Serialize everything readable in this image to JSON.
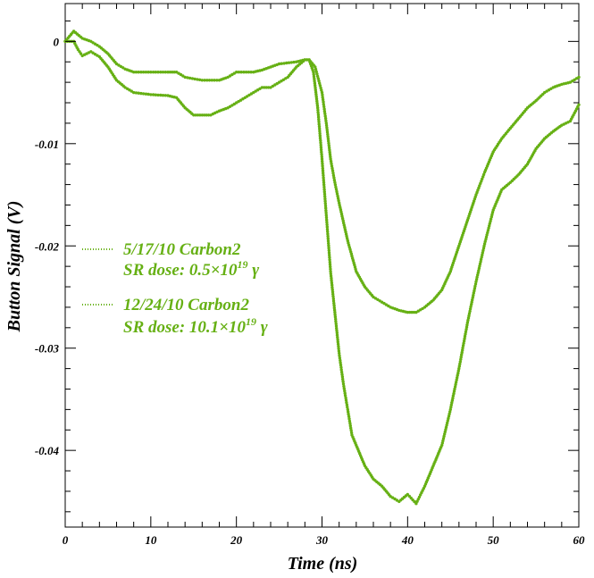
{
  "chart_data": {
    "type": "scatter",
    "xlabel": "Time (ns)",
    "ylabel": "Button Signal (V)",
    "xlim": [
      0,
      60
    ],
    "ylim": [
      -0.0475,
      0.0037
    ],
    "x_ticks": [
      0,
      10,
      20,
      30,
      40,
      50,
      60
    ],
    "x_tick_labels": [
      "0",
      "10",
      "20",
      "30",
      "40",
      "50",
      "60"
    ],
    "y_ticks": [
      0,
      -0.01,
      -0.02,
      -0.03,
      -0.04
    ],
    "y_tick_labels": [
      "0",
      "-0.01",
      "-0.02",
      "-0.03",
      "-0.04"
    ],
    "grid": false,
    "legend_position": "left-middle",
    "marker_color": "#66b014",
    "series": [
      {
        "label_line1": "5/17/10 Carbon2",
        "label_line2_prefix": "SR dose: 0.5×10",
        "label_line2_sup": "19",
        "label_line2_suffix": " γ",
        "points": [
          [
            0,
            0
          ],
          [
            1,
            0.001
          ],
          [
            2,
            0.0003
          ],
          [
            3,
            0
          ],
          [
            4,
            -0.0005
          ],
          [
            5,
            -0.0012
          ],
          [
            6,
            -0.0022
          ],
          [
            7,
            -0.0027
          ],
          [
            8,
            -0.003
          ],
          [
            10,
            -0.003
          ],
          [
            12,
            -0.003
          ],
          [
            13,
            -0.003
          ],
          [
            14,
            -0.0035
          ],
          [
            16,
            -0.0038
          ],
          [
            18,
            -0.0038
          ],
          [
            19,
            -0.0035
          ],
          [
            20,
            -0.003
          ],
          [
            22,
            -0.003
          ],
          [
            23,
            -0.0028
          ],
          [
            24,
            -0.0025
          ],
          [
            25,
            -0.0022
          ],
          [
            27,
            -0.002
          ],
          [
            28,
            -0.0018
          ],
          [
            28.5,
            -0.0018
          ],
          [
            29.2,
            -0.0025
          ],
          [
            30,
            -0.005
          ],
          [
            30.5,
            -0.008
          ],
          [
            31,
            -0.0115
          ],
          [
            31.5,
            -0.0138
          ],
          [
            32,
            -0.0158
          ],
          [
            33,
            -0.0195
          ],
          [
            34,
            -0.0225
          ],
          [
            35,
            -0.024
          ],
          [
            36,
            -0.025
          ],
          [
            37,
            -0.0255
          ],
          [
            38,
            -0.026
          ],
          [
            39,
            -0.0263
          ],
          [
            40,
            -0.0265
          ],
          [
            41,
            -0.0265
          ],
          [
            42,
            -0.026
          ],
          [
            43,
            -0.0253
          ],
          [
            44,
            -0.0243
          ],
          [
            45,
            -0.0225
          ],
          [
            46,
            -0.02
          ],
          [
            47,
            -0.0175
          ],
          [
            48,
            -0.015
          ],
          [
            49,
            -0.0128
          ],
          [
            50,
            -0.0108
          ],
          [
            51,
            -0.0095
          ],
          [
            52,
            -0.0085
          ],
          [
            53,
            -0.0075
          ],
          [
            54,
            -0.0065
          ],
          [
            55,
            -0.0058
          ],
          [
            56,
            -0.005
          ],
          [
            57,
            -0.0045
          ],
          [
            58,
            -0.0042
          ],
          [
            59,
            -0.004
          ],
          [
            60,
            -0.0035
          ]
        ]
      },
      {
        "label_line1": "12/24/10 Carbon2",
        "label_line2_prefix": "SR dose: 10.1×10",
        "label_line2_sup": "19",
        "label_line2_suffix": " γ",
        "points": [
          [
            0,
            0
          ],
          [
            1,
            0
          ],
          [
            1.5,
            -0.0008
          ],
          [
            2,
            -0.0014
          ],
          [
            3,
            -0.001
          ],
          [
            4,
            -0.0015
          ],
          [
            5,
            -0.0025
          ],
          [
            6,
            -0.0038
          ],
          [
            7,
            -0.0045
          ],
          [
            8,
            -0.005
          ],
          [
            10,
            -0.0052
          ],
          [
            12,
            -0.0053
          ],
          [
            13,
            -0.0055
          ],
          [
            14,
            -0.0065
          ],
          [
            15,
            -0.0072
          ],
          [
            16,
            -0.0072
          ],
          [
            17,
            -0.0072
          ],
          [
            18,
            -0.0068
          ],
          [
            19,
            -0.0065
          ],
          [
            20,
            -0.006
          ],
          [
            21,
            -0.0055
          ],
          [
            22,
            -0.005
          ],
          [
            23,
            -0.0045
          ],
          [
            24,
            -0.0045
          ],
          [
            25,
            -0.004
          ],
          [
            26,
            -0.0035
          ],
          [
            27,
            -0.0025
          ],
          [
            28,
            -0.0018
          ],
          [
            28.5,
            -0.0018
          ],
          [
            29,
            -0.003
          ],
          [
            29.5,
            -0.0065
          ],
          [
            30,
            -0.0115
          ],
          [
            30.5,
            -0.017
          ],
          [
            31,
            -0.0225
          ],
          [
            31.5,
            -0.0265
          ],
          [
            32,
            -0.0305
          ],
          [
            32.5,
            -0.0335
          ],
          [
            33,
            -0.036
          ],
          [
            33.5,
            -0.0385
          ],
          [
            34,
            -0.0395
          ],
          [
            35,
            -0.0415
          ],
          [
            36,
            -0.0428
          ],
          [
            37,
            -0.0435
          ],
          [
            38,
            -0.0445
          ],
          [
            39,
            -0.045
          ],
          [
            40,
            -0.0443
          ],
          [
            41,
            -0.0452
          ],
          [
            42,
            -0.0435
          ],
          [
            43,
            -0.0415
          ],
          [
            44,
            -0.0395
          ],
          [
            45,
            -0.036
          ],
          [
            46,
            -0.032
          ],
          [
            47,
            -0.0275
          ],
          [
            48,
            -0.0235
          ],
          [
            49,
            -0.0198
          ],
          [
            50,
            -0.0165
          ],
          [
            51,
            -0.0145
          ],
          [
            52,
            -0.0138
          ],
          [
            53,
            -0.013
          ],
          [
            54,
            -0.012
          ],
          [
            55,
            -0.0105
          ],
          [
            56,
            -0.0095
          ],
          [
            57,
            -0.0088
          ],
          [
            58,
            -0.0082
          ],
          [
            59,
            -0.0078
          ],
          [
            60,
            -0.0062
          ]
        ]
      }
    ]
  }
}
